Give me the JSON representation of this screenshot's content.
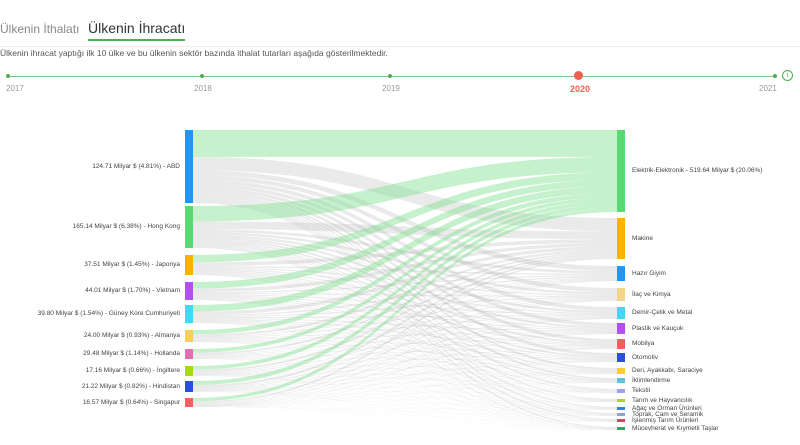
{
  "tabs": [
    "Ülkenin İthalatı",
    "Ülkenin İhracatı"
  ],
  "active_tab": 1,
  "description": "Ülkenin ihracat yaptığı ilk 10 ülke ve bu ülkenin sektör bazında ithalat tutarları aşağıda gösterilmektedir.",
  "timeline": {
    "years": [
      "2017",
      "2018",
      "2019",
      "2020",
      "2021"
    ],
    "selected": "2020",
    "info_icon": "info-icon"
  },
  "countries": [
    {
      "label": "124.71 Milyar $ (4.81%) - ABD",
      "value": 124.71,
      "color": "#2196f3"
    },
    {
      "label": "165.14 Milyar $ (6.38%) - Hong Kong",
      "value": 165.14,
      "color": "#5ad872"
    },
    {
      "label": "37.51 Milyar $ (1.45%) - Japonya",
      "value": 37.51,
      "color": "#ffb300"
    },
    {
      "label": "44.01 Milyar $ (1.70%) - Vietnam",
      "value": 44.01,
      "color": "#b44ff0"
    },
    {
      "label": "39.80 Milyar $ (1.54%) - Güney Kore Cumhuriyeti",
      "value": 39.8,
      "color": "#40d8f5"
    },
    {
      "label": "24.00 Milyar $ (0.93%) - Almanya",
      "value": 24.0,
      "color": "#f5cd5a"
    },
    {
      "label": "29.48 Milyar $ (1.14%) - Hollanda",
      "value": 29.48,
      "color": "#e070b0"
    },
    {
      "label": "17.16 Milyar $ (0.66%) - İngiltere",
      "value": 17.16,
      "color": "#a8d81a"
    },
    {
      "label": "21.22 Milyar $ (0.82%) - Hindistan",
      "value": 21.22,
      "color": "#2a4fd8"
    },
    {
      "label": "16.57 Milyar $ (0.64%) - Singapur",
      "value": 16.57,
      "color": "#f06060"
    }
  ],
  "sectors": [
    {
      "label": "Elektrik-Elektronik - 519.64 Milyar $ (20.06%)",
      "color": "#5ad872"
    },
    {
      "label": "Makine",
      "color": "#ffb300"
    },
    {
      "label": "Hazır Giyim",
      "color": "#2196f3"
    },
    {
      "label": "İlaç ve Kimya",
      "color": "#f3d58a"
    },
    {
      "label": "Demir-Çelik ve Metal",
      "color": "#40d8f5"
    },
    {
      "label": "Plastik ve Kauçuk",
      "color": "#b44ff0"
    },
    {
      "label": "Mobilya",
      "color": "#f06060"
    },
    {
      "label": "Otomotiv",
      "color": "#2a4fd8"
    },
    {
      "label": "Deri, Ayakkabı, Saraciye",
      "color": "#f5cd3a"
    },
    {
      "label": "İklimlendirme",
      "color": "#60c0e0"
    },
    {
      "label": "Tekstil",
      "color": "#a0a0f0"
    },
    {
      "label": "Tarım ve Hayvancılık",
      "color": "#a8d81a"
    },
    {
      "label": "Ağaç ve Orman Ürünleri",
      "color": "#1e88e5"
    },
    {
      "label": "Toprak, Cam ve Seramik",
      "color": "#80a8e0"
    },
    {
      "label": "İşlenmiş Tarım Ürünleri",
      "color": "#e04060"
    },
    {
      "label": "Mücevherat ve Kıymetli Taşlar",
      "color": "#20b060"
    }
  ]
}
